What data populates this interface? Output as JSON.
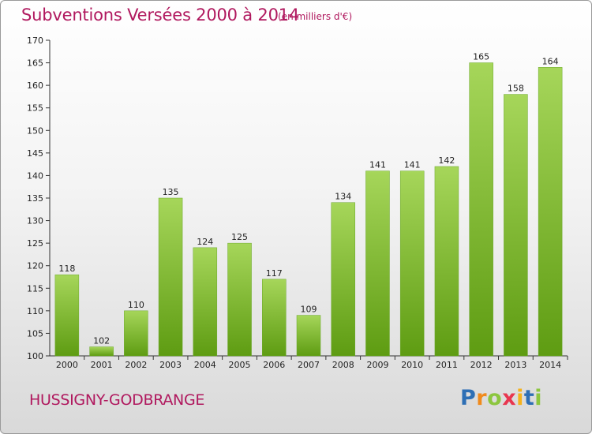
{
  "header": {
    "title": "Subventions Versées 2000 à 2014",
    "subtitle": "(en milliers d'€)"
  },
  "footer": {
    "commune": "HUSSIGNY-GODBRANGE",
    "logo_text": "Proxiti",
    "logo_letters": [
      {
        "ch": "P",
        "color": "#2e6fb5"
      },
      {
        "ch": "r",
        "color": "#f08a1c"
      },
      {
        "ch": "o",
        "color": "#8cc63f"
      },
      {
        "ch": "x",
        "color": "#e8364f"
      },
      {
        "ch": "i",
        "color": "#f5b21c"
      },
      {
        "ch": "t",
        "color": "#2e6fb5"
      },
      {
        "ch": "i",
        "color": "#8cc63f"
      }
    ]
  },
  "colors": {
    "bar_light": "#a6d65a",
    "bar_dark": "#5e9c12",
    "title": "#b0185e"
  },
  "chart_data": {
    "type": "bar",
    "title": "Subventions Versées 2000 à 2014",
    "subtitle": "(en milliers d'€)",
    "xlabel": "",
    "ylabel": "",
    "categories": [
      "2000",
      "2001",
      "2002",
      "2003",
      "2004",
      "2005",
      "2006",
      "2007",
      "2008",
      "2009",
      "2010",
      "2011",
      "2012",
      "2013",
      "2014"
    ],
    "values": [
      118,
      102,
      110,
      135,
      124,
      125,
      117,
      109,
      134,
      141,
      141,
      142,
      165,
      158,
      164
    ],
    "ylim": [
      100,
      170
    ],
    "yticks": [
      100,
      105,
      110,
      115,
      120,
      125,
      130,
      135,
      140,
      145,
      150,
      155,
      160,
      165,
      170
    ],
    "grid": false,
    "legend": "none"
  }
}
